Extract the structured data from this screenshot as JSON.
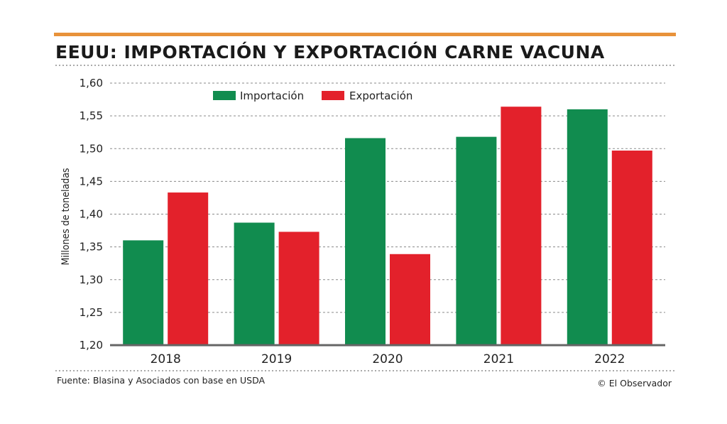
{
  "colors": {
    "accent": "#E8923A",
    "import": "#118C4F",
    "export": "#E3212B",
    "grid": "#8a8a8a",
    "axis": "#666666"
  },
  "footer": {
    "source": "Fuente: Blasina y Asociados con base en USDA",
    "credit": "© El Observador"
  },
  "chart_data": {
    "type": "bar",
    "title": "EEUU: IMPORTACIÓN Y EXPORTACIÓN CARNE VACUNA",
    "xlabel": "",
    "ylabel": "Millones de toneladas",
    "categories": [
      "2018",
      "2019",
      "2020",
      "2021",
      "2022"
    ],
    "series": [
      {
        "name": "Importación",
        "values": [
          1.36,
          1.387,
          1.516,
          1.518,
          1.56
        ]
      },
      {
        "name": "Exportación",
        "values": [
          1.433,
          1.373,
          1.339,
          1.564,
          1.497
        ]
      }
    ],
    "ylim": [
      1.2,
      1.6
    ],
    "yticks": [
      "1,20",
      "1,25",
      "1,30",
      "1,35",
      "1,40",
      "1,45",
      "1,50",
      "1,55",
      "1,60"
    ],
    "ytick_values": [
      1.2,
      1.25,
      1.3,
      1.35,
      1.4,
      1.45,
      1.5,
      1.55,
      1.6
    ],
    "grid": true,
    "legend_position": "top-left"
  }
}
